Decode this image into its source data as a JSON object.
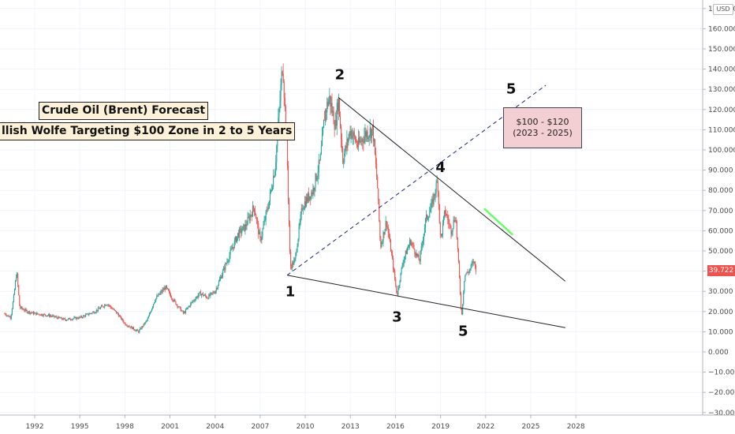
{
  "chart_data": {
    "type": "candlestick",
    "symbol_currency": "USD",
    "title_lines": [
      "Crude Oil (Brent) Forecast",
      "llish Wolfe Targeting $100 Zone in 2 to 5 Years"
    ],
    "xlim": [
      1990,
      2030
    ],
    "ylim": [
      -33,
      177
    ],
    "x_ticks": [
      1992,
      1995,
      1998,
      2001,
      2004,
      2007,
      2010,
      2013,
      2016,
      2019,
      2022,
      2025,
      2028
    ],
    "x_tick_labels": [
      "1992",
      "1995",
      "1998",
      "2001",
      "2004",
      "2007",
      "2010",
      "2013",
      "2016",
      "2019",
      "2022",
      "2025",
      "2028"
    ],
    "y_ticks": [
      -30,
      -20,
      -10,
      0,
      10,
      20,
      30,
      40,
      50,
      60,
      70,
      80,
      90,
      100,
      110,
      120,
      130,
      140,
      150,
      160,
      170
    ],
    "y_tick_labels": [
      "−30.000",
      "−20.000",
      "−10.000",
      "0.000",
      "10.000",
      "20.000",
      "30.000",
      "40.000",
      "50.000",
      "60.000",
      "70.000",
      "80.000",
      "90.000",
      "100.000",
      "110.000",
      "120.000",
      "130.000",
      "140.000",
      "150.000",
      "160.000",
      "170.000"
    ],
    "last_price": "39.722",
    "price_path": [
      [
        1990.0,
        19
      ],
      [
        1990.4,
        17
      ],
      [
        1990.6,
        27
      ],
      [
        1990.8,
        40
      ],
      [
        1991.0,
        22
      ],
      [
        1991.5,
        20
      ],
      [
        1992.0,
        19
      ],
      [
        1993.0,
        18
      ],
      [
        1994.0,
        16
      ],
      [
        1995.0,
        17
      ],
      [
        1996.0,
        20
      ],
      [
        1996.8,
        24
      ],
      [
        1997.5,
        19
      ],
      [
        1998.0,
        14
      ],
      [
        1998.9,
        10
      ],
      [
        1999.5,
        16
      ],
      [
        2000.0,
        26
      ],
      [
        2000.7,
        32
      ],
      [
        2001.2,
        26
      ],
      [
        2001.9,
        19
      ],
      [
        2002.5,
        25
      ],
      [
        2003.0,
        29
      ],
      [
        2003.5,
        27
      ],
      [
        2004.0,
        30
      ],
      [
        2004.8,
        45
      ],
      [
        2005.5,
        58
      ],
      [
        2006.0,
        62
      ],
      [
        2006.6,
        72
      ],
      [
        2007.0,
        55
      ],
      [
        2007.6,
        75
      ],
      [
        2008.0,
        92
      ],
      [
        2008.5,
        144
      ],
      [
        2008.8,
        95
      ],
      [
        2009.0,
        42
      ],
      [
        2009.3,
        45
      ],
      [
        2009.8,
        72
      ],
      [
        2010.5,
        80
      ],
      [
        2011.0,
        95
      ],
      [
        2011.3,
        118
      ],
      [
        2011.6,
        126
      ],
      [
        2012.0,
        112
      ],
      [
        2012.2,
        126
      ],
      [
        2012.5,
        95
      ],
      [
        2013.0,
        110
      ],
      [
        2013.5,
        102
      ],
      [
        2014.0,
        108
      ],
      [
        2014.5,
        110
      ],
      [
        2014.8,
        82
      ],
      [
        2015.0,
        52
      ],
      [
        2015.4,
        65
      ],
      [
        2015.8,
        45
      ],
      [
        2016.1,
        28
      ],
      [
        2016.5,
        45
      ],
      [
        2017.0,
        55
      ],
      [
        2017.4,
        48
      ],
      [
        2017.6,
        45
      ],
      [
        2018.0,
        65
      ],
      [
        2018.4,
        72
      ],
      [
        2018.8,
        85
      ],
      [
        2019.0,
        55
      ],
      [
        2019.3,
        70
      ],
      [
        2019.7,
        60
      ],
      [
        2020.0,
        68
      ],
      [
        2020.3,
        30
      ],
      [
        2020.4,
        17
      ],
      [
        2020.6,
        38
      ],
      [
        2020.9,
        40
      ],
      [
        2021.2,
        45
      ],
      [
        2021.4,
        39.7
      ]
    ],
    "annotations": {
      "wave_labels": [
        {
          "text": "1",
          "x": 2009.0,
          "y": 27.5
        },
        {
          "text": "2",
          "x": 2012.3,
          "y": 135
        },
        {
          "text": "3",
          "x": 2016.1,
          "y": 15
        },
        {
          "text": "4",
          "x": 2019.0,
          "y": 89
        },
        {
          "text": "5",
          "x": 2020.5,
          "y": 8
        },
        {
          "text": "5",
          "x": 2023.7,
          "y": 128,
          "color": "#e8435a"
        }
      ],
      "target_box_lines": [
        "$100 - $120",
        "(2023 - 2025)"
      ],
      "lines": [
        {
          "name": "upper-trendline",
          "from": [
            2012.2,
            126
          ],
          "to": [
            2027.3,
            35
          ],
          "color": "#222222",
          "style": "solid"
        },
        {
          "name": "lower-trendline",
          "from": [
            2008.8,
            38
          ],
          "to": [
            2027.3,
            12
          ],
          "color": "#222222",
          "style": "solid"
        },
        {
          "name": "wolfe-target-line",
          "from": [
            2008.8,
            38
          ],
          "to": [
            2026.0,
            132
          ],
          "color": "#1a237e",
          "style": "dashed"
        },
        {
          "name": "target-zone-highlight",
          "from": [
            2021.9,
            71
          ],
          "to": [
            2023.8,
            58
          ],
          "color": "#66ff66",
          "style": "solid"
        }
      ]
    },
    "colors": {
      "up": "#26a69a",
      "down": "#ef5350",
      "last_price_bg": "#ef5350",
      "target_box_bg": "#f3cfd3",
      "title_box_bg": "#fdf2d9"
    }
  }
}
